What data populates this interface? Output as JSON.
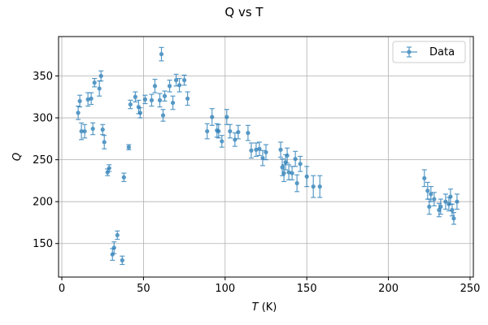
{
  "chart_data": {
    "type": "scatter",
    "title": "Q vs T",
    "xlabel_italic": "T",
    "xlabel_unit": " (K)",
    "ylabel": "Q",
    "xlim": [
      -2,
      252
    ],
    "ylim": [
      110,
      397
    ],
    "xticks": [
      0,
      50,
      100,
      150,
      200,
      250
    ],
    "yticks": [
      150,
      200,
      250,
      300,
      350
    ],
    "grid": true,
    "legend_position": "top-right",
    "color": "#1f77b4",
    "series": [
      {
        "name": "Data",
        "points": [
          [
            10,
            306,
            8
          ],
          [
            11,
            320,
            7
          ],
          [
            12,
            284,
            10
          ],
          [
            14,
            284,
            8
          ],
          [
            16,
            322,
            8
          ],
          [
            18,
            323,
            7
          ],
          [
            19,
            287,
            7
          ],
          [
            20,
            342,
            5
          ],
          [
            23,
            335,
            9
          ],
          [
            24,
            350,
            6
          ],
          [
            25,
            286,
            6
          ],
          [
            26,
            271,
            8
          ],
          [
            28,
            235,
            4
          ],
          [
            29,
            240,
            4
          ],
          [
            31,
            137,
            7
          ],
          [
            32,
            145,
            7
          ],
          [
            34,
            160,
            5
          ],
          [
            37,
            130,
            5
          ],
          [
            38,
            229,
            5
          ],
          [
            41,
            265,
            3
          ],
          [
            42,
            316,
            5
          ],
          [
            45,
            325,
            6
          ],
          [
            47,
            313,
            8
          ],
          [
            48,
            306,
            6
          ],
          [
            51,
            322,
            5
          ],
          [
            55,
            321,
            7
          ],
          [
            57,
            338,
            8
          ],
          [
            60,
            321,
            8
          ],
          [
            61,
            376,
            8
          ],
          [
            62,
            303,
            7
          ],
          [
            63,
            326,
            6
          ],
          [
            66,
            338,
            7
          ],
          [
            68,
            318,
            8
          ],
          [
            70,
            345,
            7
          ],
          [
            72,
            339,
            8
          ],
          [
            75,
            345,
            6
          ],
          [
            77,
            323,
            8
          ],
          [
            89,
            284,
            9
          ],
          [
            92,
            301,
            10
          ],
          [
            95,
            285,
            8
          ],
          [
            96,
            284,
            8
          ],
          [
            98,
            272,
            7
          ],
          [
            101,
            301,
            9
          ],
          [
            103,
            284,
            8
          ],
          [
            106,
            274,
            8
          ],
          [
            108,
            283,
            8
          ],
          [
            114,
            282,
            9
          ],
          [
            116,
            261,
            9
          ],
          [
            119,
            262,
            8
          ],
          [
            121,
            263,
            8
          ],
          [
            123,
            252,
            9
          ],
          [
            125,
            259,
            9
          ],
          [
            134,
            262,
            9
          ],
          [
            135,
            241,
            10
          ],
          [
            136,
            234,
            10
          ],
          [
            137,
            247,
            9
          ],
          [
            138,
            255,
            9
          ],
          [
            139,
            235,
            9
          ],
          [
            141,
            234,
            8
          ],
          [
            143,
            251,
            9
          ],
          [
            144,
            222,
            10
          ],
          [
            146,
            245,
            9
          ],
          [
            150,
            230,
            12
          ],
          [
            154,
            218,
            13
          ],
          [
            158,
            218,
            13
          ],
          [
            222,
            228,
            10
          ],
          [
            224,
            213,
            10
          ],
          [
            225,
            194,
            9
          ],
          [
            226,
            209,
            9
          ],
          [
            228,
            203,
            8
          ],
          [
            231,
            190,
            8
          ],
          [
            232,
            194,
            9
          ],
          [
            235,
            200,
            9
          ],
          [
            237,
            197,
            8
          ],
          [
            238,
            206,
            9
          ],
          [
            239,
            190,
            7
          ],
          [
            240,
            180,
            7
          ],
          [
            242,
            200,
            9
          ]
        ]
      }
    ]
  }
}
